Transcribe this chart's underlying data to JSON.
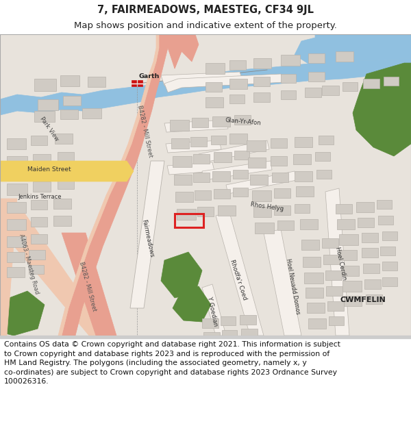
{
  "title_line1": "7, FAIRMEADOWS, MAESTEG, CF34 9JL",
  "title_line2": "Map shows position and indicative extent of the property.",
  "copyright_text": "Contains OS data © Crown copyright and database right 2021. This information is subject\nto Crown copyright and database rights 2023 and is reproduced with the permission of\nHM Land Registry. The polygons (including the associated geometry, namely x, y\nco-ordinates) are subject to Crown copyright and database rights 2023 Ordnance Survey\n100026316.",
  "title_fontsize": 10.5,
  "subtitle_fontsize": 9.5,
  "copyright_fontsize": 7.8,
  "map_bg": "#e8e3dc",
  "road_salmon": "#e8a090",
  "road_pink": "#f0c8b0",
  "road_yellow": "#f0d060",
  "road_white": "#f5f0eb",
  "river_blue": "#90c0e0",
  "green_dark": "#5a8a3a",
  "building_fill": "#d0cbc4",
  "building_edge": "#b8b3ac",
  "property_red": "#dd2222",
  "rail_red": "#cc1111",
  "text_dark": "#222222",
  "text_mid": "#444444",
  "text_gray": "#666666",
  "footer_border": "#cccccc"
}
